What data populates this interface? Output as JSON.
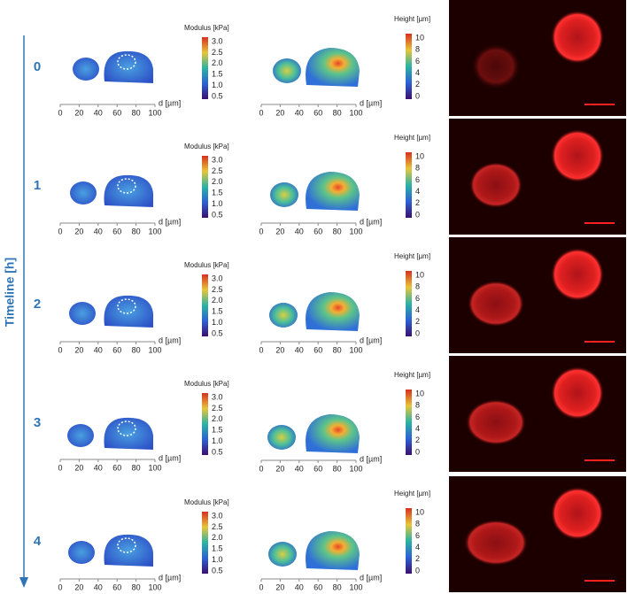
{
  "timeline_label": "Timeline [h]",
  "rows": [
    "0",
    "1",
    "2",
    "3",
    "4"
  ],
  "x_axis": {
    "label": "d [µm]",
    "ticks": [
      0,
      20,
      40,
      60,
      80,
      100
    ]
  },
  "modulus_colorbar": {
    "title": "Modulus [kPa]",
    "ticks": [
      "3.0",
      "2.5",
      "2.0",
      "1.5",
      "1.0",
      "0.5"
    ]
  },
  "height_colorbar": {
    "title": "Height [µm]",
    "ticks": [
      10,
      8,
      6,
      4,
      2,
      0
    ]
  }
}
